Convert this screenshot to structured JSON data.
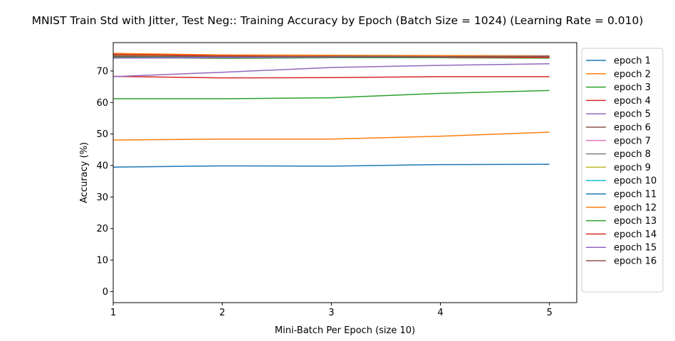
{
  "chart_data": {
    "type": "line",
    "title": "MNIST Train Std with Jitter, Test Neg:: Training Accuracy by Epoch (Batch Size = 1024) (Learning Rate = 0.010)",
    "xlabel": "Mini-Batch Per Epoch (size 10)",
    "ylabel": "Accuracy (%)",
    "xlim": [
      1,
      5.25
    ],
    "ylim": [
      -3.5,
      79
    ],
    "xticks": [
      1,
      2,
      3,
      4,
      5
    ],
    "yticks": [
      0,
      10,
      20,
      30,
      40,
      50,
      60,
      70
    ],
    "grid": false,
    "legend_position": "outside-right",
    "x": [
      1,
      2,
      3,
      4,
      5
    ],
    "series": [
      {
        "name": "epoch 1",
        "color": "#1f77b4",
        "values": [
          39.5,
          39.9,
          39.8,
          40.3,
          40.4
        ]
      },
      {
        "name": "epoch 2",
        "color": "#ff7f0e",
        "values": [
          48.1,
          48.4,
          48.4,
          49.3,
          50.6
        ]
      },
      {
        "name": "epoch 3",
        "color": "#2ca02c",
        "values": [
          61.2,
          61.2,
          61.5,
          62.9,
          63.8
        ]
      },
      {
        "name": "epoch 4",
        "color": "#d62728",
        "values": [
          68.3,
          67.8,
          67.9,
          68.2,
          68.2
        ]
      },
      {
        "name": "epoch 5",
        "color": "#9467bd",
        "values": [
          68.2,
          69.6,
          71.1,
          71.8,
          72.3
        ]
      },
      {
        "name": "epoch 6",
        "color": "#8c564b",
        "values": [
          74.9,
          74.5,
          74.6,
          74.5,
          74.4
        ]
      },
      {
        "name": "epoch 7",
        "color": "#e377c2",
        "values": [
          74.6,
          74.4,
          74.6,
          74.7,
          74.7
        ]
      },
      {
        "name": "epoch 8",
        "color": "#7f7f7f",
        "values": [
          74.4,
          74.3,
          74.5,
          74.6,
          74.7
        ]
      },
      {
        "name": "epoch 9",
        "color": "#bcbd22",
        "values": [
          75.2,
          74.7,
          74.7,
          74.6,
          74.6
        ]
      },
      {
        "name": "epoch 10",
        "color": "#17becf",
        "values": [
          74.3,
          74.5,
          74.6,
          74.8,
          74.8
        ]
      },
      {
        "name": "epoch 11",
        "color": "#1f77b4",
        "values": [
          74.6,
          74.6,
          74.7,
          74.8,
          74.8
        ]
      },
      {
        "name": "epoch 12",
        "color": "#ff7f0e",
        "values": [
          75.6,
          75.1,
          75.0,
          74.9,
          74.8
        ]
      },
      {
        "name": "epoch 13",
        "color": "#2ca02c",
        "values": [
          74.3,
          74.0,
          74.2,
          74.2,
          74.1
        ]
      },
      {
        "name": "epoch 14",
        "color": "#d62728",
        "values": [
          75.3,
          74.8,
          74.6,
          74.4,
          74.3
        ]
      },
      {
        "name": "epoch 15",
        "color": "#9467bd",
        "values": [
          74.1,
          74.2,
          74.4,
          74.5,
          74.7
        ]
      },
      {
        "name": "epoch 16",
        "color": "#8c564b",
        "values": [
          74.7,
          74.6,
          74.6,
          74.6,
          74.6
        ]
      }
    ]
  }
}
